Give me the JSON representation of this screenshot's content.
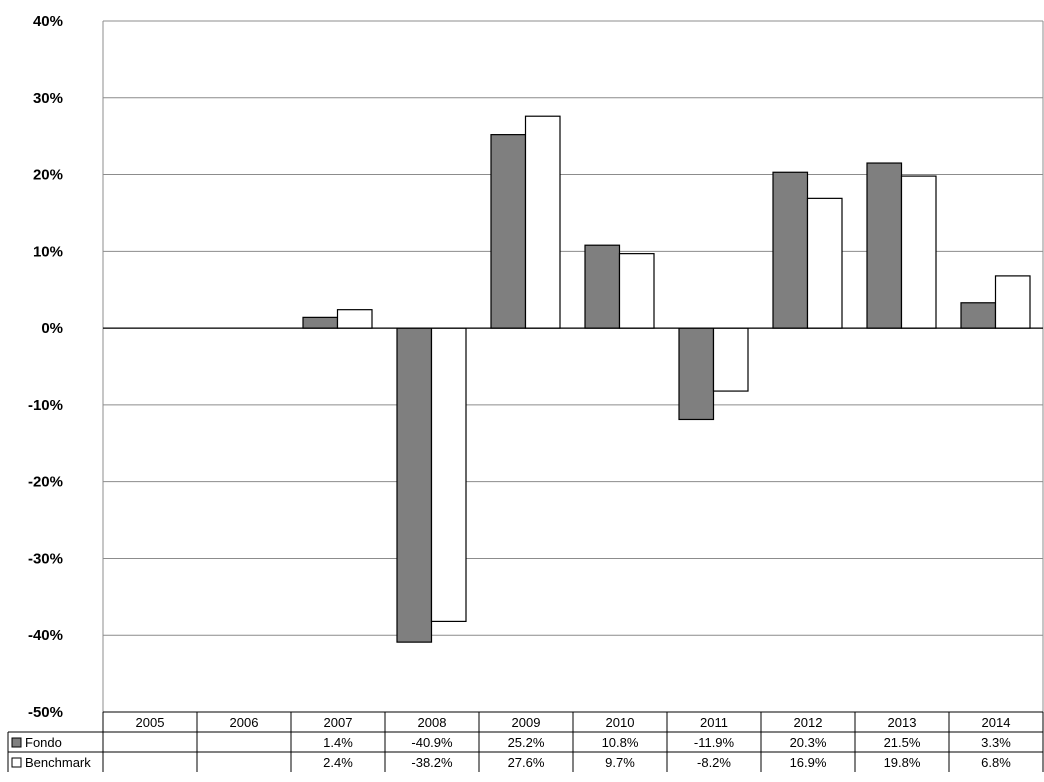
{
  "chart_data": {
    "type": "bar",
    "categories": [
      "2005",
      "2006",
      "2007",
      "2008",
      "2009",
      "2010",
      "2011",
      "2012",
      "2013",
      "2014"
    ],
    "series": [
      {
        "name": "Fondo",
        "color": "#7f7f7f",
        "values": [
          null,
          null,
          1.4,
          -40.9,
          25.2,
          10.8,
          -11.9,
          20.3,
          21.5,
          3.3
        ],
        "labels": [
          "",
          "",
          "1.4%",
          "-40.9%",
          "25.2%",
          "10.8%",
          "-11.9%",
          "20.3%",
          "21.5%",
          "3.3%"
        ]
      },
      {
        "name": "Benchmark",
        "color": "#ffffff",
        "values": [
          null,
          null,
          2.4,
          -38.2,
          27.6,
          9.7,
          -8.2,
          16.9,
          19.8,
          6.8
        ],
        "labels": [
          "",
          "",
          "2.4%",
          "-38.2%",
          "27.6%",
          "9.7%",
          "-8.2%",
          "16.9%",
          "19.8%",
          "6.8%"
        ]
      }
    ],
    "ylim": [
      -50,
      40
    ],
    "yticks": [
      "40%",
      "30%",
      "20%",
      "10%",
      "0%",
      "-10%",
      "-20%",
      "-30%",
      "-40%",
      "-50%"
    ],
    "grid": true,
    "legend": "data table"
  }
}
